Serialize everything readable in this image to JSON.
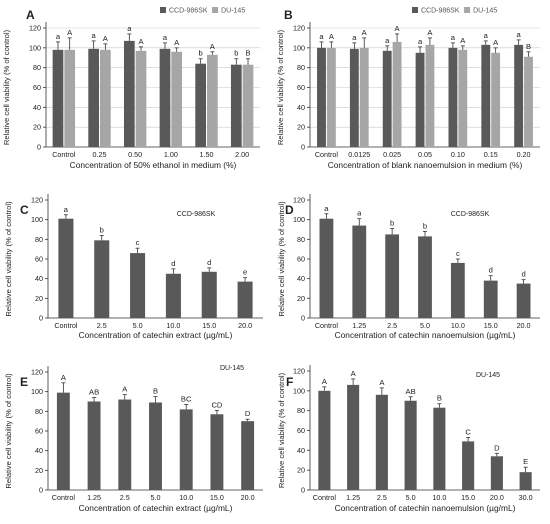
{
  "chart_data": [
    {
      "id": "A",
      "type": "bar",
      "panel_letter": "A",
      "grid": true,
      "legend_position": "top-right",
      "categories": [
        "Control",
        "0.25",
        "0.50",
        "1.00",
        "1.50",
        "2.00"
      ],
      "series": [
        {
          "name": "CCD-986SK",
          "color": "#595959",
          "values": [
            98,
            99,
            107,
            99,
            84,
            83
          ],
          "errors": [
            8,
            8,
            7,
            6,
            5,
            6
          ],
          "labels": [
            "a",
            "a",
            "a",
            "a",
            "b",
            "b"
          ]
        },
        {
          "name": "DU-145",
          "color": "#a6a6a6",
          "values": [
            98,
            98,
            97,
            96,
            93,
            83
          ],
          "errors": [
            12,
            6,
            4,
            4,
            3,
            6
          ],
          "labels": [
            "A",
            "A",
            "A",
            "A",
            "A",
            "B"
          ]
        }
      ],
      "xlabel": "Concentration of 50% ethanol in medium (%)",
      "ylabel": "Relative cell viability (% of control)",
      "ylim": [
        0,
        120
      ],
      "yticks": [
        0,
        20,
        40,
        60,
        80,
        100,
        120
      ]
    },
    {
      "id": "B",
      "type": "bar",
      "panel_letter": "B",
      "grid": true,
      "legend_position": "top-right",
      "categories": [
        "Control",
        "0.0125",
        "0.025",
        "0.05",
        "0.10",
        "0.15",
        "0.20"
      ],
      "series": [
        {
          "name": "CCD-986SK",
          "color": "#595959",
          "values": [
            100,
            99,
            97,
            95,
            100,
            103,
            103
          ],
          "errors": [
            6,
            6,
            5,
            6,
            5,
            4,
            5
          ],
          "labels": [
            "a",
            "a",
            "a",
            "a",
            "a",
            "a",
            "a"
          ]
        },
        {
          "name": "DU-145",
          "color": "#a6a6a6",
          "values": [
            100,
            100,
            106,
            103,
            98,
            95,
            91
          ],
          "errors": [
            6,
            10,
            8,
            7,
            4,
            5,
            5
          ],
          "labels": [
            "A",
            "A",
            "A",
            "A",
            "A",
            "A",
            "B"
          ]
        }
      ],
      "xlabel": "Concentration of blank nanoemulsion in medium (%)",
      "ylabel": "Relative cell viability (% of control)",
      "ylim": [
        0,
        120
      ],
      "yticks": [
        0,
        20,
        40,
        60,
        80,
        100,
        120
      ]
    },
    {
      "id": "C",
      "type": "bar",
      "panel_letter": "C",
      "note": "CCD-986SK",
      "grid": false,
      "categories": [
        "Control",
        "2.5",
        "5.0",
        "10.0",
        "15.0",
        "20.0"
      ],
      "series": [
        {
          "color": "#595959",
          "values": [
            101,
            79,
            66,
            45,
            47,
            37
          ],
          "errors": [
            4,
            5,
            5,
            5,
            4,
            4
          ],
          "labels": [
            "a",
            "b",
            "c",
            "d",
            "d",
            "e"
          ]
        }
      ],
      "xlabel": "Concentration of catechin extract (µg/mL)",
      "ylabel": "Relative cell viability (% of control)",
      "ylim": [
        0,
        120
      ],
      "yticks": [
        0,
        20,
        40,
        60,
        80,
        100,
        120
      ]
    },
    {
      "id": "D",
      "type": "bar",
      "panel_letter": "D",
      "note": "CCD-986SK",
      "grid": false,
      "categories": [
        "Control",
        "1.25",
        "2.5",
        "5.0",
        "10.0",
        "15.0",
        "20.0"
      ],
      "series": [
        {
          "color": "#595959",
          "values": [
            101,
            94,
            85,
            83,
            56,
            38,
            35
          ],
          "errors": [
            5,
            7,
            6,
            5,
            4,
            5,
            4
          ],
          "labels": [
            "a",
            "a",
            "b",
            "b",
            "c",
            "d",
            "d"
          ]
        }
      ],
      "xlabel": "Concentration of catechin nanoemulsion (µg/mL)",
      "ylabel": "Relative cell viability (% of control)",
      "ylim": [
        0,
        120
      ],
      "yticks": [
        0,
        20,
        40,
        60,
        80,
        100,
        120
      ]
    },
    {
      "id": "E",
      "type": "bar",
      "panel_letter": "E",
      "note": "DU-145",
      "grid": false,
      "categories": [
        "Control",
        "1.25",
        "2.5",
        "5.0",
        "10.0",
        "15.0",
        "20.0"
      ],
      "series": [
        {
          "color": "#595959",
          "values": [
            99,
            90,
            92,
            89,
            82,
            77,
            70
          ],
          "errors": [
            10,
            4,
            5,
            6,
            5,
            4,
            2
          ],
          "labels": [
            "A",
            "AB",
            "A",
            "B",
            "BC",
            "CD",
            "D"
          ]
        }
      ],
      "xlabel": "Concentration of catechin extract (µg/mL)",
      "ylabel": "Relative cell viability (% of control)",
      "ylim": [
        0,
        120
      ],
      "yticks": [
        0,
        20,
        40,
        60,
        80,
        100,
        120
      ]
    },
    {
      "id": "F",
      "type": "bar",
      "panel_letter": "F",
      "note": "DU-145",
      "grid": false,
      "categories": [
        "Control",
        "1.25",
        "2.5",
        "5.0",
        "10.0",
        "15.0",
        "20.0",
        "30.0"
      ],
      "series": [
        {
          "color": "#595959",
          "values": [
            100,
            106,
            96,
            90,
            83,
            49,
            34,
            18
          ],
          "errors": [
            4,
            6,
            7,
            4,
            4,
            4,
            3,
            5
          ],
          "labels": [
            "A",
            "A",
            "A",
            "AB",
            "B",
            "C",
            "D",
            "E"
          ]
        }
      ],
      "xlabel": "Concentration of catechin nanoemulsion (µg/mL)",
      "ylabel": "Relative cell viability (% of control)",
      "ylim": [
        0,
        120
      ],
      "yticks": [
        0,
        20,
        40,
        60,
        80,
        100,
        120
      ]
    }
  ]
}
